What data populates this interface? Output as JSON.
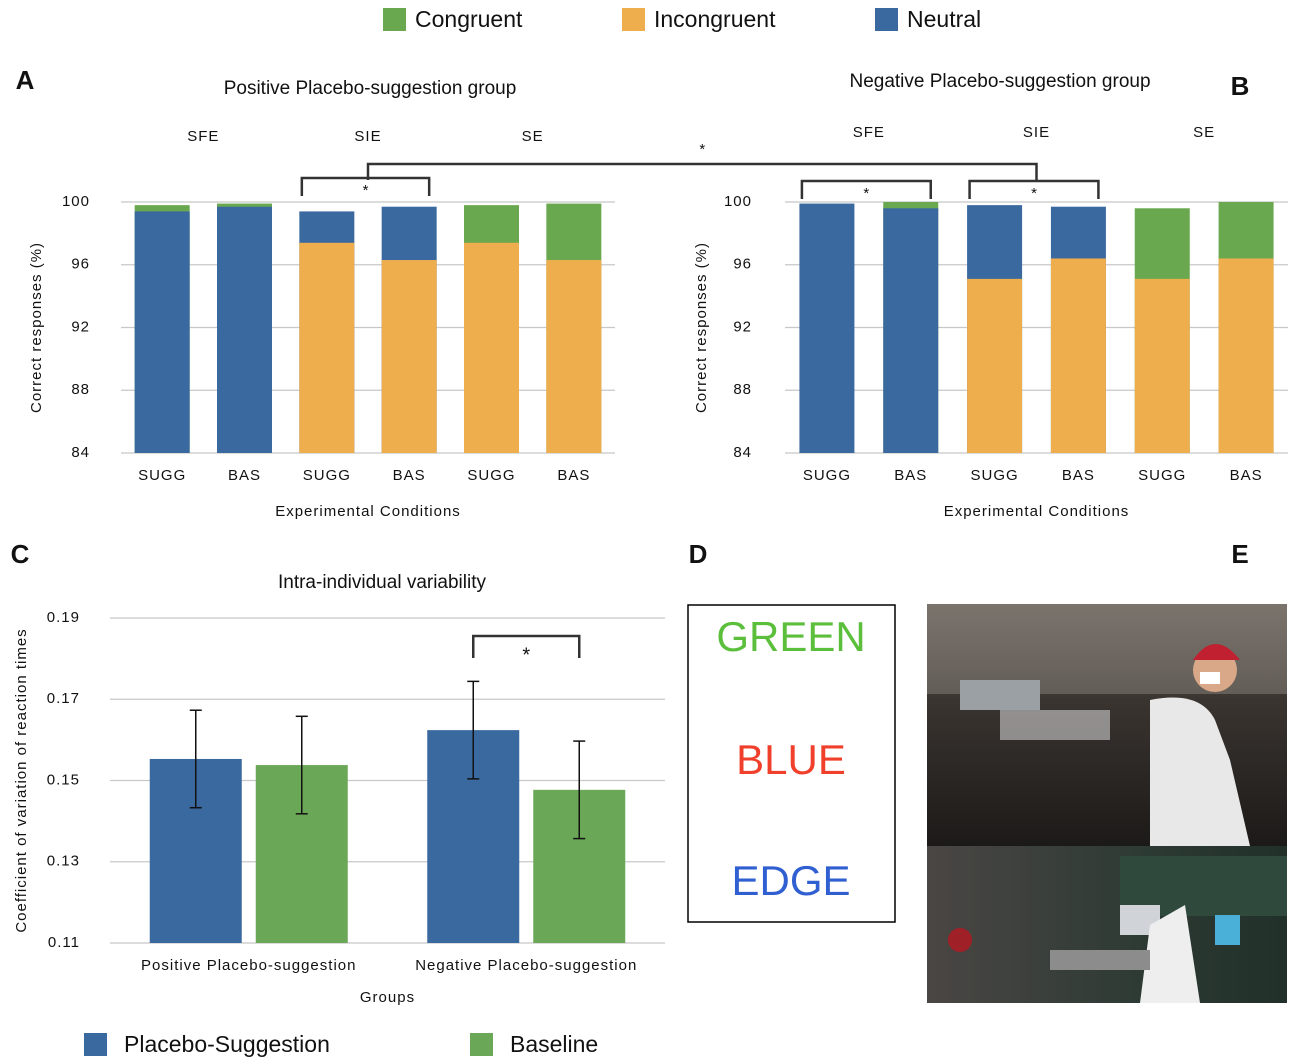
{
  "chart_data": [
    {
      "type": "bar",
      "panel": "A",
      "title": "Positive Placebo-suggestion group",
      "overlap": true,
      "group_labels": [
        "SFE",
        "SIE",
        "SE"
      ],
      "categories": [
        "SUGG",
        "BAS",
        "SUGG",
        "BAS",
        "SUGG",
        "BAS"
      ],
      "series": [
        {
          "name": "Congruent",
          "color": "#6aa84f",
          "values": [
            99.8,
            99.9,
            null,
            null,
            99.8,
            99.9
          ]
        },
        {
          "name": "Incongruent",
          "color": "#efae4e",
          "values": [
            null,
            null,
            97.4,
            96.3,
            97.4,
            96.3
          ]
        },
        {
          "name": "Neutral",
          "color": "#3a69a0",
          "values": [
            99.4,
            99.7,
            99.4,
            99.7,
            null,
            null
          ]
        }
      ],
      "brackets": [
        {
          "text": "*",
          "categories": [
            2,
            3
          ]
        }
      ],
      "ylabel": "Correct responses (%)",
      "xlabel": "Experimental Conditions",
      "ylim": [
        84,
        100
      ],
      "yticks": [
        84,
        88,
        92,
        96,
        100
      ],
      "grid": true
    },
    {
      "type": "bar",
      "panel": "B",
      "title": "Negative Placebo-suggestion group",
      "overlap": true,
      "group_labels": [
        "SFE",
        "SIE",
        "SE"
      ],
      "categories": [
        "SUGG",
        "BAS",
        "SUGG",
        "BAS",
        "SUGG",
        "BAS"
      ],
      "series": [
        {
          "color": "#6aa84f",
          "values": [
            null,
            100.0,
            null,
            null,
            99.6,
            100.0
          ]
        },
        {
          "color": "#efae4e",
          "values": [
            null,
            null,
            95.1,
            96.4,
            95.1,
            96.4
          ]
        },
        {
          "color": "#3a69a0",
          "values": [
            99.9,
            99.6,
            99.8,
            99.7,
            null,
            null
          ]
        }
      ],
      "brackets": [
        {
          "text": "*",
          "categories": [
            0,
            1
          ]
        },
        {
          "text": "*",
          "categories": [
            2,
            3
          ]
        }
      ],
      "ylabel": "Correct responses (%)",
      "xlabel": "Experimental Conditions",
      "ylim": [
        84,
        100
      ],
      "yticks": [
        84,
        88,
        92,
        96,
        100
      ],
      "grid": true
    },
    {
      "type": "bar",
      "panel": "C",
      "title": "Intra-individual variability",
      "overlap": false,
      "categories": [
        "Positive Placebo-suggestion",
        "Negative Placebo-suggestion"
      ],
      "series": [
        {
          "name": "Placebo-Suggestion",
          "color": "#3a69a0",
          "values": [
            0.1553,
            0.1624
          ],
          "errors": [
            0.012,
            0.012
          ]
        },
        {
          "name": "Baseline",
          "color": "#6aa858",
          "values": [
            0.1538,
            0.1477
          ],
          "errors": [
            0.012,
            0.012
          ]
        }
      ],
      "brackets": [
        {
          "text": "*",
          "categories": [
            1,
            1
          ]
        }
      ],
      "ylabel": "Coefficient of variation of reaction times",
      "xlabel": "Groups",
      "ylim": [
        0.11,
        0.19
      ],
      "yticks": [
        0.11,
        0.13,
        0.15,
        0.17,
        0.19
      ],
      "grid": true
    }
  ],
  "cross_panel_bracket": {
    "text": "*"
  },
  "panel_D": {
    "panel": "D",
    "words": [
      {
        "text": "GREEN",
        "color": "#5cbf3c"
      },
      {
        "text": "BLUE",
        "color": "#f0402c"
      },
      {
        "text": "EDGE",
        "color": "#2f5fd0"
      }
    ]
  },
  "panel_E": {
    "panel": "E"
  }
}
